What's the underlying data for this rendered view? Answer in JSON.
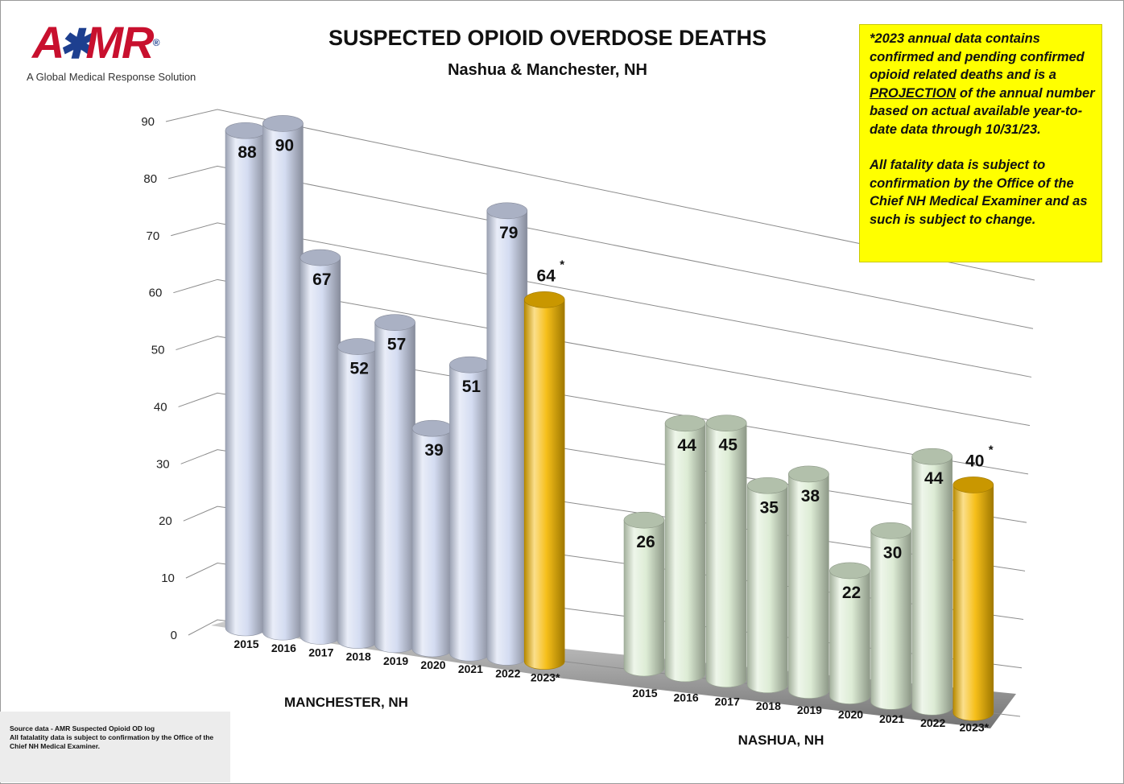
{
  "logo": {
    "wordmark": "AMR",
    "tagline": "A Global Medical Response Solution",
    "color_primary": "#c8102e",
    "color_star": "#1d3f8f"
  },
  "note": {
    "paragraph1_before": "*2023 annual data contains confirmed and pending confirmed opioid related deaths and is a ",
    "paragraph1_emph": "PROJECTION",
    "paragraph1_after": " of the annual number based on actual available year-to-date data through 10/31/23.",
    "paragraph2": "All fatality data is subject to confirmation by the Office of the Chief NH Medical Examiner and as such is subject to change.",
    "background": "#ffff00"
  },
  "source": {
    "line1": "Source data - AMR Suspected Opioid OD log",
    "line2": "All fatalatity data is subject to confirmation by the Office of the Chief NH Medical Examiner."
  },
  "chart_data": {
    "type": "bar",
    "style": "3d-cylinder",
    "title": "SUSPECTED OPIOID OVERDOSE DEATHS",
    "subtitle": "Nashua & Manchester, NH",
    "ylim": [
      0,
      90
    ],
    "yticks": [
      0,
      10,
      20,
      30,
      40,
      50,
      60,
      70,
      80,
      90
    ],
    "grid": true,
    "projection_marker": "*",
    "groups": [
      {
        "name": "MANCHESTER, NH",
        "categories": [
          "2015",
          "2016",
          "2017",
          "2018",
          "2019",
          "2020",
          "2021",
          "2022",
          "2023*"
        ],
        "values": [
          88,
          90,
          67,
          52,
          57,
          39,
          51,
          79,
          64
        ],
        "color": "#cfd8ef",
        "projection_color": "#f5b800"
      },
      {
        "name": "NASHUA, NH",
        "categories": [
          "2015",
          "2016",
          "2017",
          "2018",
          "2019",
          "2020",
          "2021",
          "2022",
          "2023*"
        ],
        "values": [
          26,
          44,
          45,
          35,
          38,
          22,
          30,
          44,
          40
        ],
        "color": "#d9ead0",
        "projection_color": "#f5b800"
      }
    ]
  }
}
